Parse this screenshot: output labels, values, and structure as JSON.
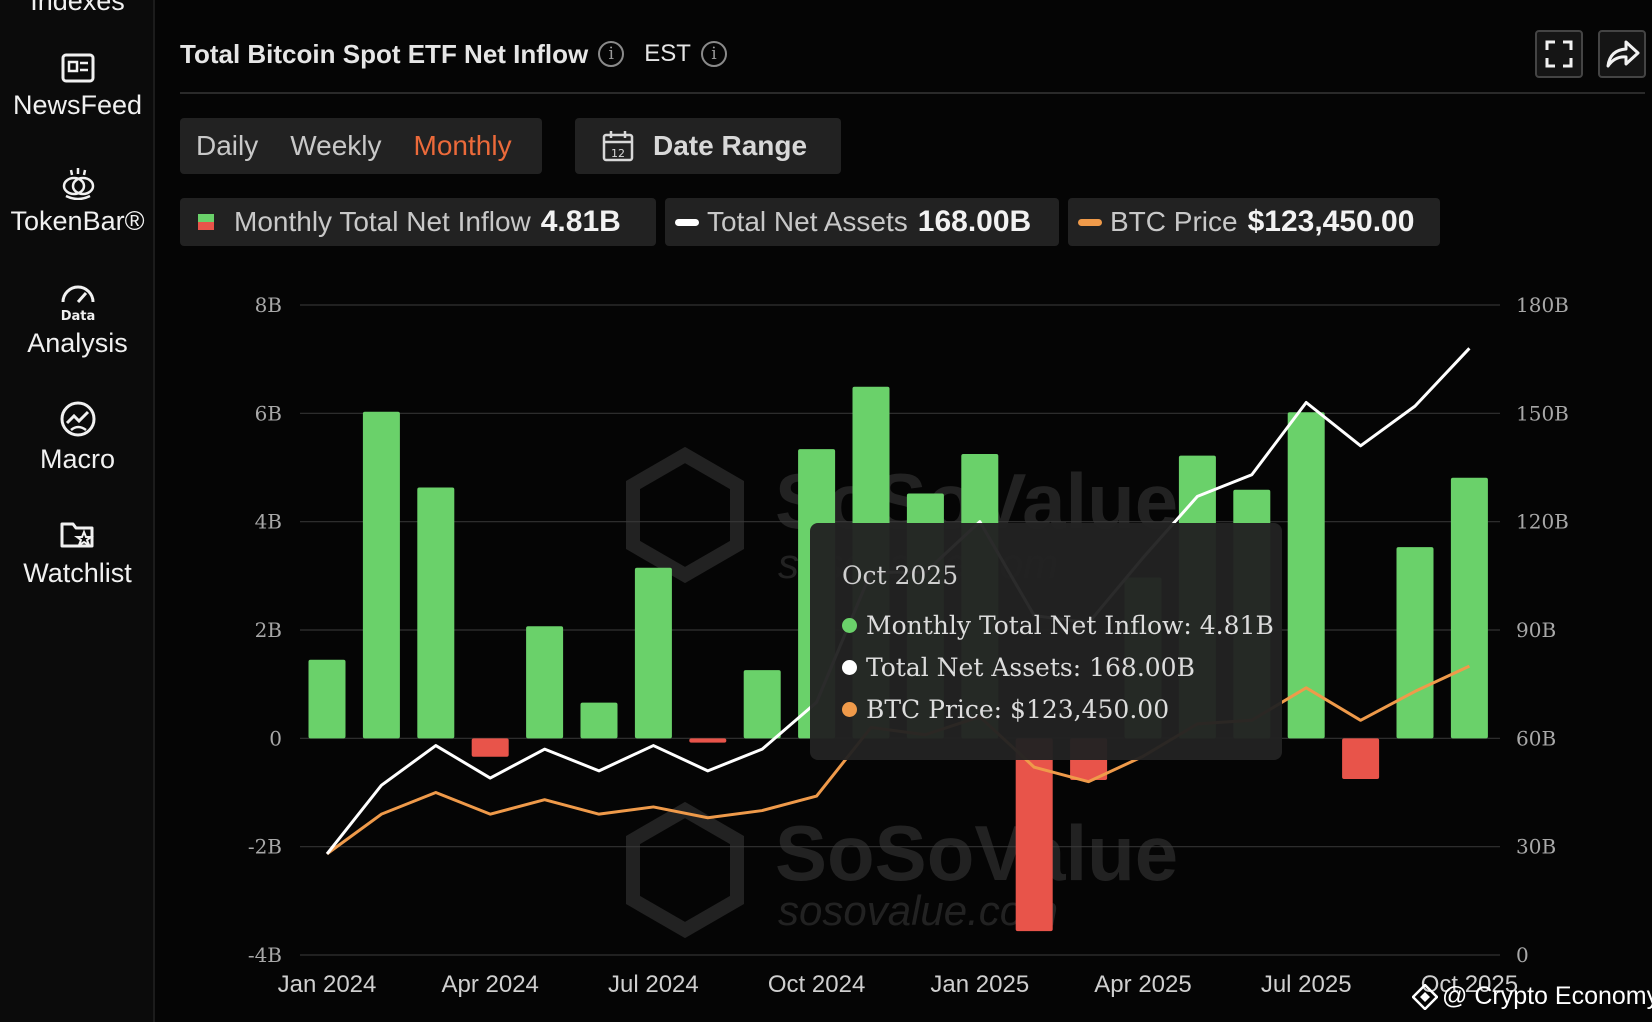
{
  "sidebar": {
    "items": [
      {
        "label": "Indexes",
        "icon": "indexes-icon"
      },
      {
        "label": "NewsFeed",
        "icon": "newspaper-icon"
      },
      {
        "label": "TokenBar®",
        "icon": "tokens-icon"
      },
      {
        "label": "Analysis",
        "icon": "data-analysis-icon"
      },
      {
        "label": "Macro",
        "icon": "globe-icon"
      },
      {
        "label": "Watchlist",
        "icon": "folder-star-icon"
      }
    ]
  },
  "header": {
    "title": "Total Bitcoin Spot ETF Net Inflow",
    "timezone": "EST",
    "info_glyph": "i"
  },
  "controls": {
    "periods": [
      "Daily",
      "Weekly",
      "Monthly"
    ],
    "active_period": "Monthly",
    "date_range_label": "Date Range",
    "calendar_day": "12"
  },
  "legend": [
    {
      "label": "Monthly Total Net Inflow",
      "value": "4.81B",
      "color": "#6ad16a"
    },
    {
      "label": "Total Net Assets",
      "value": "168.00B",
      "color": "#ffffff"
    },
    {
      "label": "BTC Price",
      "value": "$123,450.00",
      "color": "#ef9a4a"
    }
  ],
  "tooltip": {
    "title": "Oct 2025",
    "rows": [
      {
        "label": "Monthly Total Net Inflow: 4.81B",
        "color": "#6ad16a"
      },
      {
        "label": "Total Net Assets: 168.00B",
        "color": "#ffffff"
      },
      {
        "label": "BTC Price: $123,450.00",
        "color": "#ef9a4a"
      }
    ]
  },
  "watermark": {
    "brand": "SoSoValue",
    "url": "sosovalue.com"
  },
  "credit": "@ Crypto Economy",
  "colors": {
    "positive": "#6ad16a",
    "negative": "#e8544a",
    "assets": "#ffffff",
    "price": "#ef9a4a",
    "active": "#ec6a3a"
  },
  "chart_data": {
    "type": "bar",
    "title": "Total Bitcoin Spot ETF Net Inflow",
    "categories": [
      "Jan 2024",
      "Feb 2024",
      "Mar 2024",
      "Apr 2024",
      "May 2024",
      "Jun 2024",
      "Jul 2024",
      "Aug 2024",
      "Sep 2024",
      "Oct 2024",
      "Nov 2024",
      "Dec 2024",
      "Jan 2025",
      "Feb 2025",
      "Mar 2025",
      "Apr 2025",
      "May 2025",
      "Jun 2025",
      "Jul 2025",
      "Aug 2025",
      "Sep 2025",
      "Oct 2025"
    ],
    "x_tick_labels": [
      "Jan 2024",
      "Apr 2024",
      "Jul 2024",
      "Oct 2024",
      "Jan 2025",
      "Apr 2025",
      "Jul 2025",
      "Oct 2025"
    ],
    "x_tick_indices": [
      0,
      3,
      6,
      9,
      12,
      15,
      18,
      21
    ],
    "y_left": {
      "ticks": [
        -4,
        -2,
        0,
        2,
        4,
        6,
        8
      ],
      "tick_labels": [
        "-4B",
        "-2B",
        "0",
        "2B",
        "4B",
        "6B",
        "8B"
      ],
      "ylim": [
        -4,
        8
      ],
      "unit": "B"
    },
    "y_right": {
      "ticks": [
        0,
        30,
        60,
        90,
        120,
        150,
        180
      ],
      "tick_labels": [
        "0",
        "30B",
        "60B",
        "90B",
        "120B",
        "150B",
        "180B"
      ],
      "ylim": [
        0,
        180
      ],
      "unit": "B"
    },
    "series": [
      {
        "name": "Monthly Total Net Inflow",
        "type": "bar",
        "axis": "left",
        "values": [
          1.45,
          6.03,
          4.63,
          -0.34,
          2.07,
          0.66,
          3.15,
          -0.08,
          1.26,
          5.34,
          6.49,
          4.52,
          5.25,
          -3.56,
          -0.77,
          2.97,
          5.22,
          4.59,
          6.02,
          -0.75,
          3.53,
          4.81
        ]
      },
      {
        "name": "Total Net Assets",
        "type": "line",
        "axis": "right",
        "values": [
          28,
          47,
          58,
          49,
          57,
          51,
          58,
          51,
          57,
          70,
          106,
          106,
          120,
          94,
          92,
          110,
          127,
          133,
          153,
          141,
          152,
          168
        ]
      },
      {
        "name": "BTC Price",
        "type": "line",
        "axis": "right",
        "display_max": 123450,
        "values": [
          28,
          39,
          45,
          39,
          43,
          39,
          41,
          38,
          40,
          44,
          63,
          61,
          66,
          52,
          48,
          55,
          64,
          65,
          74,
          65,
          73,
          80
        ]
      }
    ]
  }
}
